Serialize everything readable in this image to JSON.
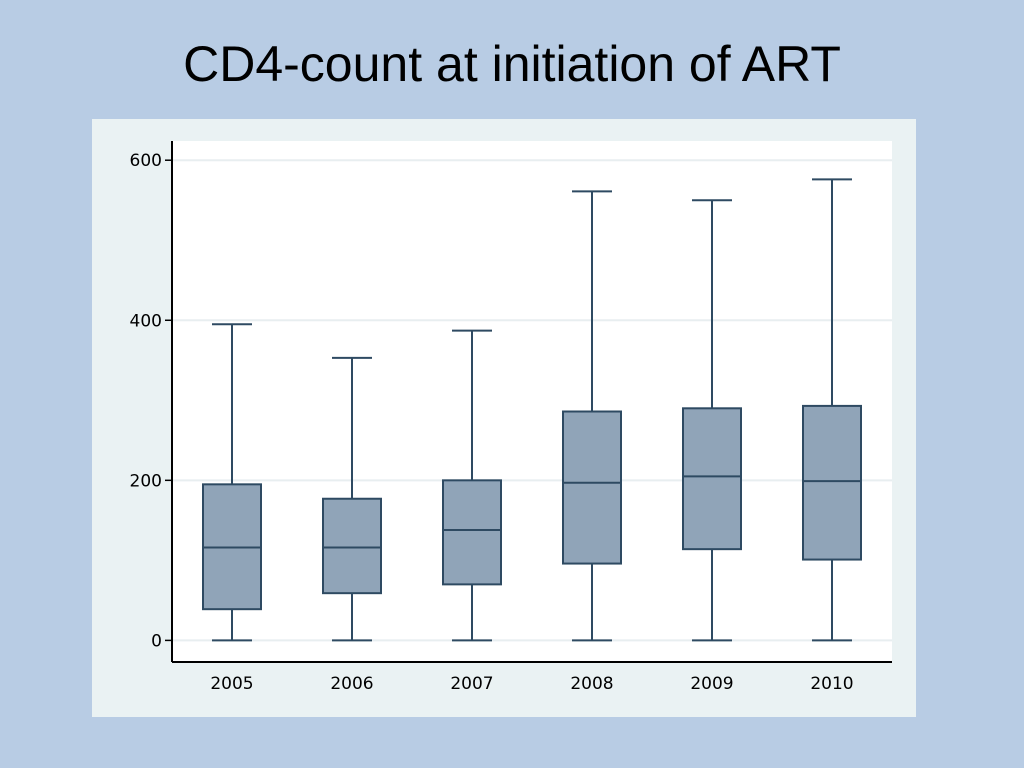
{
  "slide": {
    "title": "CD4-count at initiation of ART"
  },
  "colors": {
    "background": "#b8cce4",
    "chart_background": "#eaf2f3",
    "plot_background": "#ffffff",
    "box_fill": "#90a4b8",
    "box_stroke": "#2e4a62",
    "axis": "#000000",
    "grid": "#e8eef0"
  },
  "chart_data": {
    "type": "box",
    "title": "",
    "xlabel": "",
    "ylabel": "",
    "ylim": [
      -27,
      624
    ],
    "yticks": [
      0,
      200,
      400,
      600
    ],
    "grid": true,
    "categories": [
      "2005",
      "2006",
      "2007",
      "2008",
      "2009",
      "2010"
    ],
    "boxes": [
      {
        "category": "2005",
        "min": 0,
        "q1": 39,
        "median": 116,
        "q3": 195,
        "max": 395
      },
      {
        "category": "2006",
        "min": 0,
        "q1": 59,
        "median": 116,
        "q3": 177,
        "max": 353
      },
      {
        "category": "2007",
        "min": 0,
        "q1": 70,
        "median": 138,
        "q3": 200,
        "max": 387
      },
      {
        "category": "2008",
        "min": 0,
        "q1": 96,
        "median": 197,
        "q3": 286,
        "max": 561
      },
      {
        "category": "2009",
        "min": 0,
        "q1": 114,
        "median": 205,
        "q3": 290,
        "max": 550
      },
      {
        "category": "2010",
        "min": 0,
        "q1": 101,
        "median": 199,
        "q3": 293,
        "max": 576
      }
    ]
  }
}
